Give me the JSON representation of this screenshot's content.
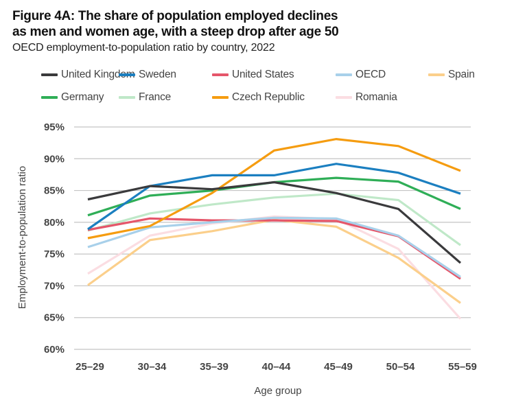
{
  "title_line1": "Figure 4A: The share of population employed declines",
  "title_line2": "as men and women age, with a steep drop after age 50",
  "subtitle": "OECD employment-to-population ratio by country, 2022",
  "chart_data": {
    "type": "line",
    "title": "Figure 4A: The share of population employed declines as men and women age, with a steep drop after age 50",
    "subtitle": "OECD employment-to-population ratio by country, 2022",
    "xlabel": "Age group",
    "ylabel": "Employment-to-population ratio",
    "categories": [
      "25–29",
      "30–34",
      "35–39",
      "40–44",
      "45–49",
      "50–54",
      "55–59"
    ],
    "ylim": [
      60,
      95
    ],
    "yticks": [
      60,
      65,
      70,
      75,
      80,
      85,
      90,
      95
    ],
    "ytick_labels": [
      "60%",
      "65%",
      "70%",
      "75%",
      "80%",
      "85%",
      "90%",
      "95%"
    ],
    "grid": true,
    "legend_position": "top",
    "series": [
      {
        "name": "United Kingdom",
        "color": "#3a3a3c",
        "values": [
          83.6,
          85.7,
          85.2,
          86.3,
          84.6,
          82.1,
          73.6
        ]
      },
      {
        "name": "Sweden",
        "color": "#1b7fc0",
        "values": [
          78.9,
          85.7,
          87.4,
          87.4,
          89.2,
          87.8,
          84.5
        ]
      },
      {
        "name": "United States",
        "color": "#e5566a",
        "values": [
          78.8,
          80.6,
          80.3,
          80.3,
          80.2,
          77.8,
          71.1
        ]
      },
      {
        "name": "OECD",
        "color": "#a8d0ea",
        "values": [
          76.1,
          79.2,
          80.0,
          80.7,
          80.6,
          77.9,
          71.4
        ]
      },
      {
        "name": "Spain",
        "color": "#fbcf8b",
        "values": [
          70.1,
          77.2,
          78.6,
          80.4,
          79.3,
          74.4,
          67.3
        ]
      },
      {
        "name": "Germany",
        "color": "#2fae57",
        "values": [
          81.1,
          84.2,
          85.0,
          86.3,
          87.0,
          86.4,
          82.1
        ]
      },
      {
        "name": "France",
        "color": "#bfe8c8",
        "values": [
          78.7,
          81.4,
          82.8,
          83.9,
          84.5,
          83.5,
          76.4
        ]
      },
      {
        "name": "Czech Republic",
        "color": "#f59c10",
        "values": [
          77.5,
          79.4,
          84.6,
          91.3,
          93.1,
          92.0,
          88.1
        ]
      },
      {
        "name": "Romania",
        "color": "#fbdde2",
        "values": [
          71.9,
          77.9,
          79.8,
          80.9,
          80.5,
          75.8,
          64.8
        ]
      }
    ]
  }
}
